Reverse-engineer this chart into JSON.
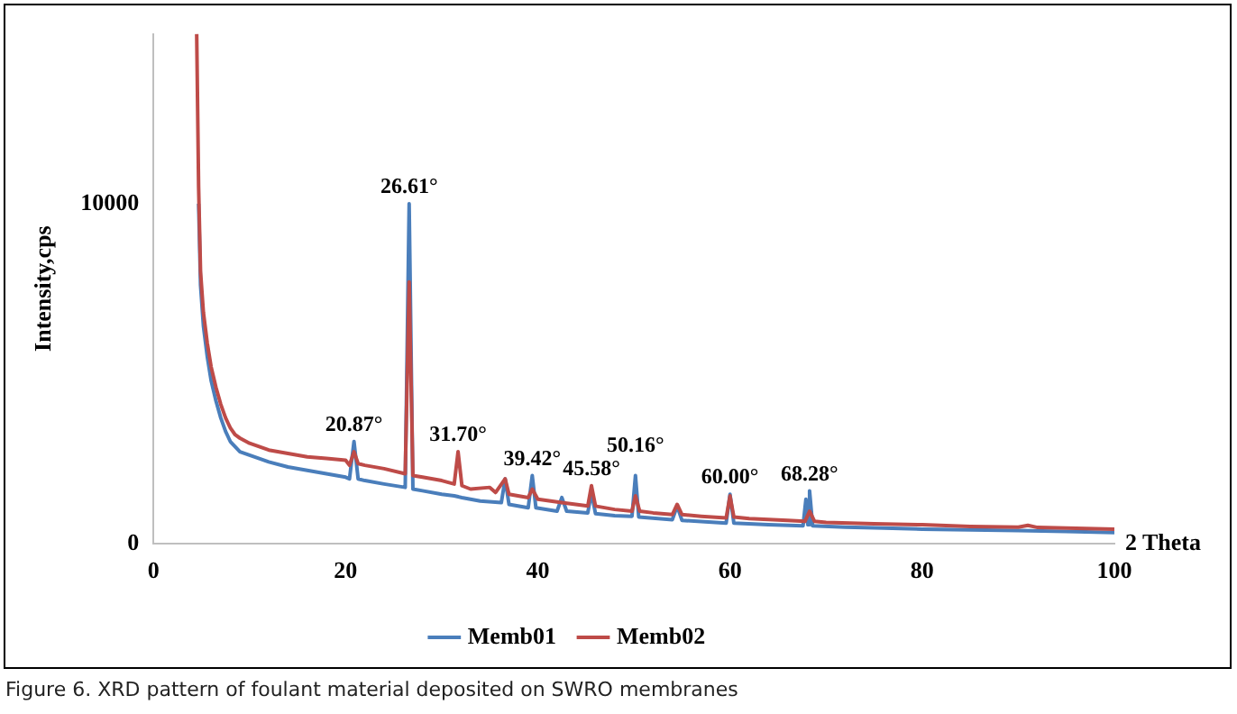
{
  "chart_data": {
    "type": "line",
    "xlabel": "2 Theta",
    "ylabel": "Intensity,cps",
    "xlim": [
      0,
      100
    ],
    "xticks": [
      0,
      20,
      40,
      60,
      80,
      100
    ],
    "ylim": [
      0,
      15000
    ],
    "yticks": [
      0,
      10000
    ],
    "grid": false,
    "legend": "bottom",
    "marker": "none",
    "line_style": "solid",
    "series": [
      {
        "name": "Memb01",
        "color": "#4a7ebb",
        "x": [
          4.7,
          4.9,
          5.2,
          5.6,
          6,
          6.5,
          7,
          7.5,
          8,
          9,
          10,
          12,
          14,
          16,
          18,
          20,
          20.4,
          20.87,
          21.3,
          22,
          24,
          26.2,
          26.61,
          27,
          28,
          30,
          31.3,
          31.7,
          32.1,
          34,
          36.2,
          36.6,
          37,
          39,
          39.42,
          39.8,
          42,
          42.5,
          43,
          45.2,
          45.58,
          46,
          48,
          49.8,
          50.16,
          50.5,
          54,
          54.5,
          55,
          59.6,
          60,
          60.4,
          64,
          67.6,
          67.9,
          68.1,
          68.28,
          68.6,
          72,
          76,
          80,
          85,
          90,
          95,
          100
        ],
        "values": [
          10000,
          7600,
          6400,
          5500,
          4800,
          4200,
          3700,
          3300,
          3000,
          2700,
          2600,
          2400,
          2250,
          2150,
          2050,
          1950,
          1900,
          3000,
          1900,
          1850,
          1750,
          1650,
          10000,
          1600,
          1550,
          1450,
          1400,
          null,
          1350,
          1250,
          1200,
          1900,
          1150,
          1050,
          2000,
          1050,
          950,
          1350,
          950,
          900,
          1500,
          880,
          820,
          800,
          2000,
          780,
          700,
          1100,
          680,
          600,
          1450,
          600,
          550,
          520,
          1300,
          550,
          1550,
          520,
          480,
          450,
          420,
          400,
          380,
          350,
          320
        ]
      },
      {
        "name": "Memb02",
        "color": "#be4b48",
        "x": [
          4.5,
          4.7,
          4.9,
          5.2,
          5.6,
          6,
          6.5,
          7,
          7.5,
          8,
          8.5,
          9,
          10,
          12,
          14,
          16,
          18,
          20,
          20.4,
          20.87,
          21.3,
          22,
          24,
          26.2,
          26.61,
          27,
          28,
          30,
          31.3,
          31.7,
          32.1,
          33,
          35,
          35.6,
          36.6,
          37,
          39,
          39.42,
          40,
          42.5,
          45.2,
          45.58,
          46,
          48,
          49.8,
          50.16,
          50.6,
          52,
          54,
          54.5,
          55,
          57,
          59.6,
          60,
          60.4,
          62,
          66,
          67.8,
          68.28,
          68.8,
          70,
          75,
          80,
          85,
          90,
          91,
          92,
          95,
          100
        ],
        "values": [
          15000,
          10500,
          8000,
          6800,
          5900,
          5200,
          4600,
          4100,
          3700,
          3400,
          3200,
          3100,
          2950,
          2750,
          2650,
          2550,
          2500,
          2450,
          2300,
          2700,
          2350,
          2300,
          2200,
          2050,
          7700,
          2000,
          1950,
          1850,
          1750,
          2700,
          1700,
          1600,
          1650,
          1500,
          1900,
          1450,
          1350,
          1600,
          1300,
          1200,
          1100,
          1700,
          1100,
          1000,
          950,
          1400,
          950,
          900,
          850,
          1150,
          850,
          800,
          750,
          1400,
          780,
          730,
          680,
          650,
          950,
          650,
          620,
          580,
          550,
          500,
          480,
          530,
          470,
          450,
          420
        ]
      }
    ],
    "annotations": [
      {
        "text": "20.87°",
        "x": 20.87,
        "y": 3000
      },
      {
        "text": "26.61°",
        "x": 26.61,
        "y": 10000
      },
      {
        "text": "31.70°",
        "x": 31.7,
        "y": 2700
      },
      {
        "text": "39.42°",
        "x": 39.42,
        "y": 2000
      },
      {
        "text": "45.58°",
        "x": 45.58,
        "y": 1700
      },
      {
        "text": "50.16°",
        "x": 50.16,
        "y": 2000
      },
      {
        "text": "60.00°",
        "x": 60,
        "y": 1450
      },
      {
        "text": "68.28°",
        "x": 68.28,
        "y": 1550
      },
      "Figure 6. XRD pattern of foulant material deposited on SWRO membranes"
    ]
  }
}
